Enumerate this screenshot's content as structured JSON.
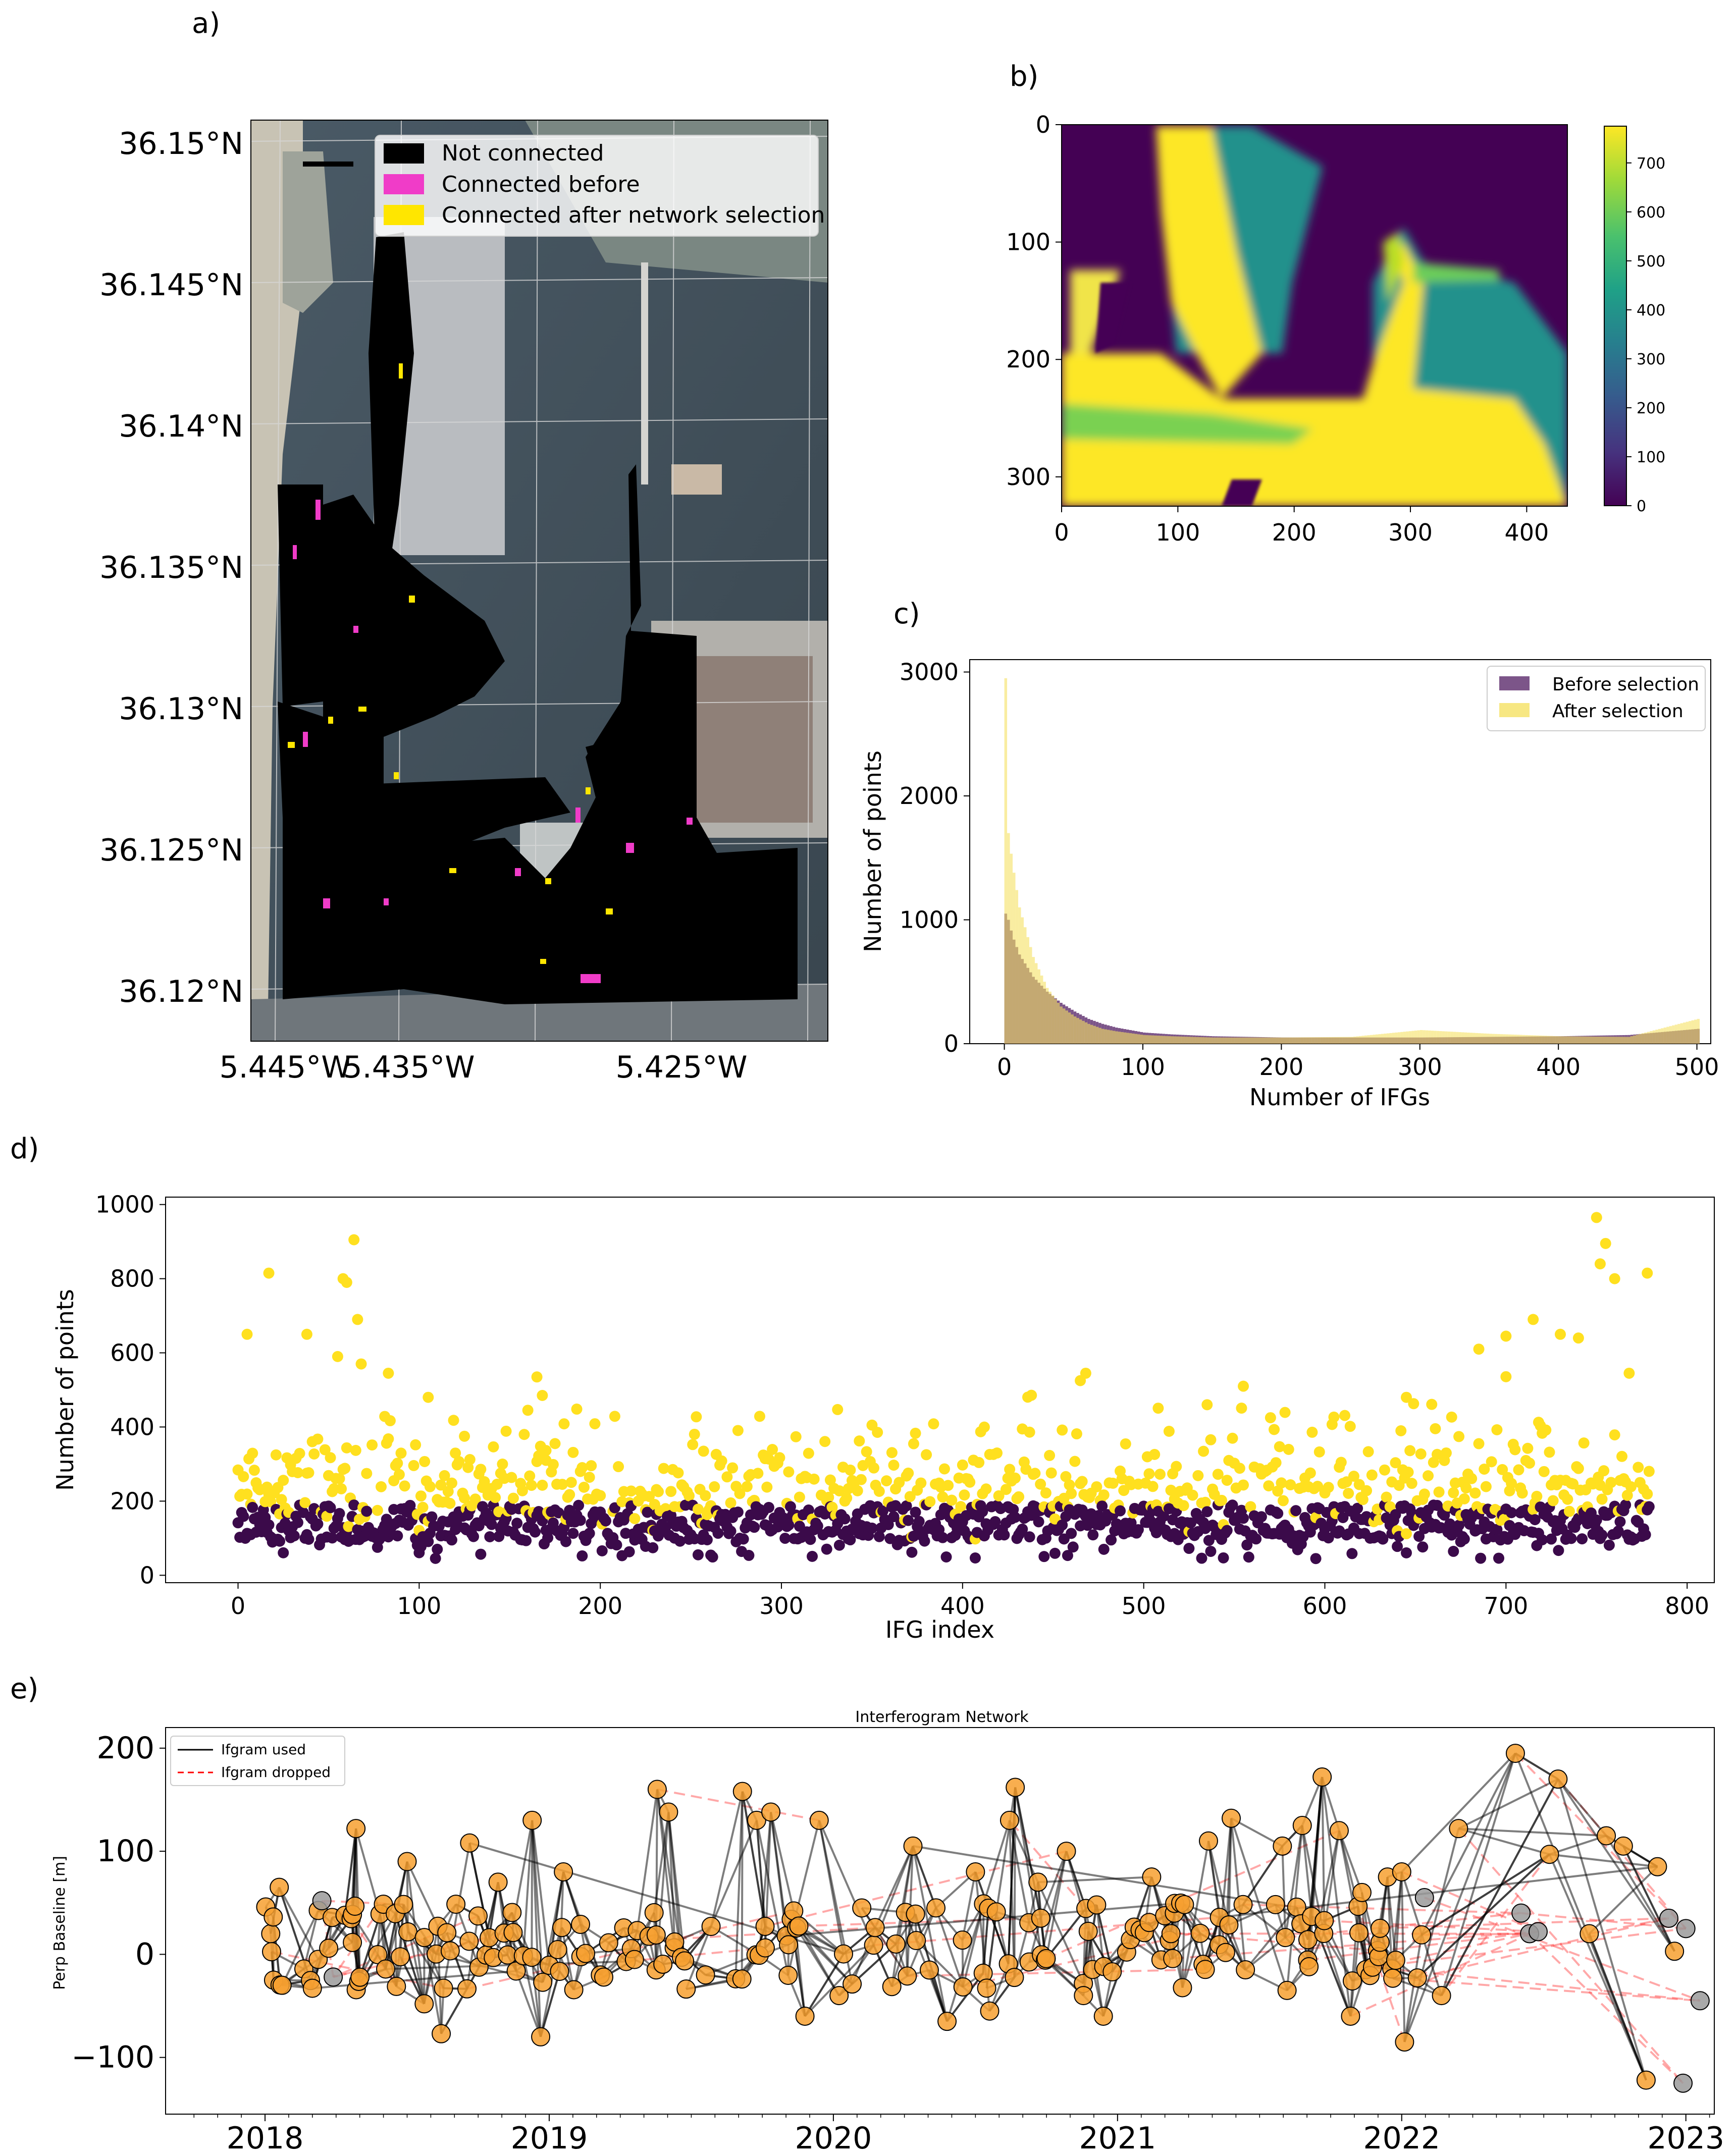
{
  "panel_labels": {
    "a": "a)",
    "b": "b)",
    "c": "c)",
    "d": "d)",
    "e": "e)"
  },
  "chart_data": [
    {
      "panel": "a",
      "type": "scatter",
      "title": "",
      "background": "satellite image of port",
      "y_ticks": [
        "36.15°N",
        "36.145°N",
        "36.14°N",
        "36.135°N",
        "36.13°N",
        "36.125°N",
        "36.12°N"
      ],
      "x_ticks": [
        "5.445°W",
        "5.435°W",
        "5.425°W"
      ],
      "legend": {
        "placement": "top-right",
        "entries": [
          {
            "label": "Not connected",
            "color": "#000000"
          },
          {
            "label": "Connected before",
            "color": "#f03cc8"
          },
          {
            "label": "Connected after network selection",
            "color": "#ffe600"
          }
        ]
      }
    },
    {
      "panel": "b",
      "type": "heatmap",
      "colormap": "viridis",
      "x_ticks": [
        "0",
        "100",
        "200",
        "300",
        "400"
      ],
      "y_ticks": [
        "0",
        "100",
        "200",
        "300"
      ],
      "colorbar_ticks": [
        "0",
        "100",
        "200",
        "300",
        "400",
        "500",
        "600",
        "700"
      ],
      "xlim": [
        0,
        435
      ],
      "ylim": [
        325,
        0
      ],
      "clim": [
        0,
        775
      ]
    },
    {
      "panel": "c",
      "type": "bar",
      "xlabel": "Number of IFGs",
      "ylabel": "Number of points",
      "xlim": [
        -25,
        510
      ],
      "ylim": [
        0,
        3100
      ],
      "x_ticks": [
        "0",
        "100",
        "200",
        "300",
        "400",
        "500"
      ],
      "y_ticks": [
        "0",
        "1000",
        "2000",
        "3000"
      ],
      "legend": {
        "placement": "top-right"
      },
      "series": [
        {
          "name": "Before selection",
          "color": "#5b2a6b",
          "x": [
            0,
            2,
            5,
            10,
            20,
            30,
            40,
            50,
            60,
            70,
            80,
            100,
            120,
            150,
            200,
            250,
            300,
            350,
            400,
            450,
            500
          ],
          "values": [
            1050,
            1000,
            870,
            720,
            540,
            420,
            330,
            260,
            200,
            160,
            130,
            90,
            75,
            60,
            50,
            50,
            50,
            55,
            60,
            70,
            120
          ]
        },
        {
          "name": "After selection",
          "color": "#f5e163",
          "x": [
            0,
            2,
            5,
            10,
            20,
            30,
            40,
            50,
            60,
            70,
            80,
            100,
            120,
            150,
            200,
            250,
            300,
            350,
            400,
            450,
            500
          ],
          "values": [
            2950,
            1700,
            1450,
            1100,
            700,
            450,
            300,
            220,
            160,
            120,
            100,
            70,
            60,
            50,
            50,
            55,
            110,
            80,
            60,
            55,
            200
          ]
        }
      ]
    },
    {
      "panel": "d",
      "type": "scatter",
      "xlabel": "IFG index",
      "ylabel": "Number of points",
      "xlim": [
        -40,
        815
      ],
      "ylim": [
        -20,
        1020
      ],
      "x_ticks": [
        "0",
        "100",
        "200",
        "300",
        "400",
        "500",
        "600",
        "700",
        "800"
      ],
      "y_ticks": [
        "0",
        "200",
        "400",
        "600",
        "800",
        "1000"
      ],
      "n_points": 780,
      "series": [
        {
          "color": "#ffe01f",
          "x": [
            5,
            17,
            38,
            55,
            58,
            60,
            64,
            66,
            68,
            83,
            105,
            125,
            165,
            168,
            170,
            465,
            468,
            535,
            555,
            570,
            645,
            685,
            700,
            715,
            730,
            740,
            750,
            752,
            755,
            760,
            768,
            778
          ],
          "y": [
            650,
            815,
            650,
            590,
            800,
            790,
            905,
            690,
            570,
            545,
            480,
            375,
            535,
            485,
            310,
            525,
            545,
            460,
            510,
            425,
            480,
            610,
            645,
            690,
            650,
            640,
            965,
            840,
            895,
            800,
            545,
            815
          ]
        },
        {
          "color": "#3b0a4a"
        }
      ]
    },
    {
      "panel": "e",
      "type": "scatter",
      "title": "Interferogram Network",
      "ylabel": "Perp Baseline [m]",
      "xlim": [
        2017.65,
        2023.1
      ],
      "ylim": [
        -155,
        220
      ],
      "x_ticks": [
        "2018",
        "2019",
        "2020",
        "2021",
        "2022",
        "2023"
      ],
      "y_ticks": [
        "200",
        "100",
        "0",
        "−100"
      ],
      "legend": {
        "placement": "top-left",
        "entries": [
          {
            "label": "Ifgram used",
            "color": "#000000",
            "style": "solid"
          },
          {
            "label": "Ifgram dropped",
            "color": "#ff0000",
            "style": "dashed"
          }
        ]
      },
      "used_acquisitions": [
        {
          "t": 2018.05,
          "b": 65
        },
        {
          "t": 2018.03,
          "b": -25
        },
        {
          "t": 2018.02,
          "b": 20
        },
        {
          "t": 2018.06,
          "b": -30
        },
        {
          "t": 2018.32,
          "b": 122
        },
        {
          "t": 2018.5,
          "b": 90
        },
        {
          "t": 2018.56,
          "b": -48
        },
        {
          "t": 2018.62,
          "b": -77
        },
        {
          "t": 2018.72,
          "b": 108
        },
        {
          "t": 2018.82,
          "b": 70
        },
        {
          "t": 2018.94,
          "b": 130
        },
        {
          "t": 2018.97,
          "b": -80
        },
        {
          "t": 2019.05,
          "b": 80
        },
        {
          "t": 2019.18,
          "b": -20
        },
        {
          "t": 2019.3,
          "b": -5
        },
        {
          "t": 2019.38,
          "b": 160
        },
        {
          "t": 2019.42,
          "b": 138
        },
        {
          "t": 2019.55,
          "b": -20
        },
        {
          "t": 2019.68,
          "b": 158
        },
        {
          "t": 2019.73,
          "b": 130
        },
        {
          "t": 2019.78,
          "b": 138
        },
        {
          "t": 2019.9,
          "b": -60
        },
        {
          "t": 2019.95,
          "b": 130
        },
        {
          "t": 2020.02,
          "b": -40
        },
        {
          "t": 2020.1,
          "b": 45
        },
        {
          "t": 2020.22,
          "b": 10
        },
        {
          "t": 2020.28,
          "b": 105
        },
        {
          "t": 2020.4,
          "b": -65
        },
        {
          "t": 2020.5,
          "b": 80
        },
        {
          "t": 2020.55,
          "b": -55
        },
        {
          "t": 2020.62,
          "b": 130
        },
        {
          "t": 2020.64,
          "b": 162
        },
        {
          "t": 2020.72,
          "b": 70
        },
        {
          "t": 2020.82,
          "b": 100
        },
        {
          "t": 2020.88,
          "b": -40
        },
        {
          "t": 2020.95,
          "b": -60
        },
        {
          "t": 2021.12,
          "b": 75
        },
        {
          "t": 2021.2,
          "b": 40
        },
        {
          "t": 2021.32,
          "b": 110
        },
        {
          "t": 2021.4,
          "b": 132
        },
        {
          "t": 2021.45,
          "b": -15
        },
        {
          "t": 2021.58,
          "b": 105
        },
        {
          "t": 2021.65,
          "b": 125
        },
        {
          "t": 2021.72,
          "b": 172
        },
        {
          "t": 2021.78,
          "b": 120
        },
        {
          "t": 2021.82,
          "b": -60
        },
        {
          "t": 2021.86,
          "b": 60
        },
        {
          "t": 2021.95,
          "b": 75
        },
        {
          "t": 2022.0,
          "b": 80
        },
        {
          "t": 2022.01,
          "b": -85
        },
        {
          "t": 2022.14,
          "b": -40
        },
        {
          "t": 2022.2,
          "b": 122
        },
        {
          "t": 2022.4,
          "b": 195
        },
        {
          "t": 2022.52,
          "b": 97
        },
        {
          "t": 2022.55,
          "b": 170
        },
        {
          "t": 2022.66,
          "b": 20
        },
        {
          "t": 2022.72,
          "b": 115
        },
        {
          "t": 2022.78,
          "b": 105
        },
        {
          "t": 2022.86,
          "b": -122
        },
        {
          "t": 2022.9,
          "b": 85
        },
        {
          "t": 2022.96,
          "b": 3
        }
      ],
      "dropped_acquisitions": [
        {
          "t": 2018.2,
          "b": 52
        },
        {
          "t": 2018.24,
          "b": -22
        },
        {
          "t": 2022.08,
          "b": 55
        },
        {
          "t": 2022.42,
          "b": 40
        },
        {
          "t": 2022.45,
          "b": 20
        },
        {
          "t": 2022.48,
          "b": 22
        },
        {
          "t": 2022.94,
          "b": 35
        },
        {
          "t": 2023.0,
          "b": 25
        },
        {
          "t": 2023.05,
          "b": -45
        },
        {
          "t": 2022.99,
          "b": -125
        }
      ]
    }
  ],
  "colors": {
    "used_node_fill": "#f7a030",
    "dropped_node_fill": "#9a9a9a",
    "used_edge": "#000000",
    "dropped_edge": "#ff4040"
  }
}
